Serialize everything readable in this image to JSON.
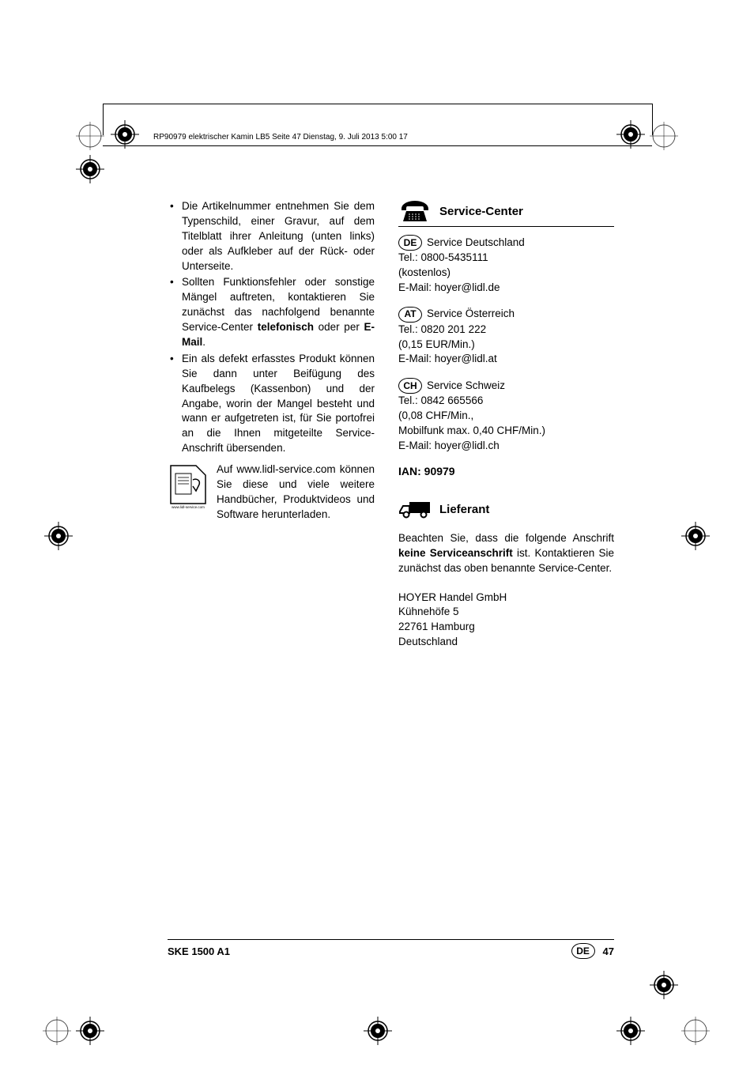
{
  "header": {
    "text": "RP90979 elektrischer Kamin LB5  Seite 47  Dienstag, 9. Juli 2013  5:00 17"
  },
  "left_column": {
    "bullets": [
      "Die Artikelnummer entnehmen Sie dem Typenschild, einer Gravur, auf dem Titelblatt ihrer Anleitung (unten links) oder als Aufkleber auf der Rück- oder Unterseite.",
      "Sollten Funktionsfehler oder sonstige Mängel auftreten, kontaktieren Sie zunächst das nachfolgend benannte Service-Center <b>telefonisch</b> oder per <b>E-Mail</b>.",
      "Ein als defekt erfasstes Produkt können Sie dann unter Beifügung des Kaufbelegs (Kassenbon) und der Angabe, worin der Mangel besteht und wann er aufgetreten ist, für Sie portofrei an die Ihnen mitgeteilte Service-Anschrift übersenden."
    ],
    "download_text": "Auf www.lidl-service.com können Sie diese und viele weitere Handbücher, Produktvideos und Software herunterladen.",
    "download_url_label": "www.lidl-service.com"
  },
  "right_column": {
    "service_center_title": "Service-Center",
    "services": [
      {
        "code": "DE",
        "name": "Service Deutschland",
        "tel": "Tel.: 0800-5435111",
        "cost": "(kostenlos)",
        "email": "E-Mail: hoyer@lidl.de"
      },
      {
        "code": "AT",
        "name": "Service Österreich",
        "tel": "Tel.: 0820 201 222",
        "cost": "(0,15 EUR/Min.)",
        "email": "E-Mail: hoyer@lidl.at"
      },
      {
        "code": "CH",
        "name": "Service Schweiz",
        "tel": "Tel.:  0842 665566",
        "cost": "(0,08 CHF/Min.,",
        "cost2": "Mobilfunk max. 0,40 CHF/Min.)",
        "email": "E-Mail: hoyer@lidl.ch"
      }
    ],
    "ian": "IAN: 90979",
    "lieferant_title": "Lieferant",
    "lieferant_text": "Beachten Sie, dass die folgende Anschrift <b>keine Serviceanschrift</b> ist. Kontaktieren Sie zunächst das oben benannte Service-Center.",
    "lieferant_address": [
      "HOYER Handel GmbH",
      "Kühnehöfe 5",
      "22761 Hamburg",
      "Deutschland"
    ]
  },
  "footer": {
    "model": "SKE 1500 A1",
    "country": "DE",
    "page": "47"
  },
  "colors": {
    "text": "#000000",
    "bg": "#ffffff"
  }
}
